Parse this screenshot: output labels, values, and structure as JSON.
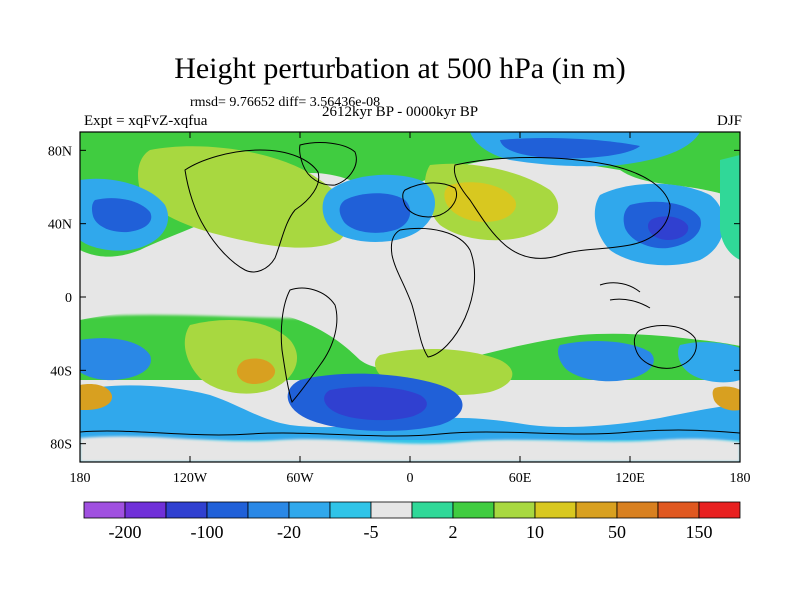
{
  "title": "Height perturbation at 500 hPa (in m)",
  "stats": "rmsd= 9.76652 diff= 3.56436e-08",
  "left_label": "Expt = xqFvZ-xqfua",
  "center_label": "2612kyr BP - 0000kyr BP",
  "right_label": "DJF",
  "map": {
    "projection": "equirectangular",
    "lon_range": [
      -180,
      180
    ],
    "lat_range": [
      -90,
      90
    ],
    "x_ticks": [
      {
        "lon": -180,
        "label": "180"
      },
      {
        "lon": -120,
        "label": "120W"
      },
      {
        "lon": -60,
        "label": "60W"
      },
      {
        "lon": 0,
        "label": "0"
      },
      {
        "lon": 60,
        "label": "60E"
      },
      {
        "lon": 120,
        "label": "120E"
      },
      {
        "lon": 180,
        "label": "180"
      }
    ],
    "y_ticks": [
      {
        "lat": 80,
        "label": "80N"
      },
      {
        "lat": 40,
        "label": "40N"
      },
      {
        "lat": 0,
        "label": "0"
      },
      {
        "lat": -40,
        "label": "40S"
      },
      {
        "lat": -80,
        "label": "80S"
      }
    ],
    "background_color": "#e6e6e6"
  },
  "colorbar": {
    "colors": [
      "#a050e0",
      "#7030d8",
      "#3040d0",
      "#2060d8",
      "#2a88e6",
      "#30a8ec",
      "#30c4e8",
      "#e6e6e6",
      "#30d898",
      "#40cc40",
      "#a8d840",
      "#d8c820",
      "#d8a020",
      "#d88020",
      "#e05820",
      "#e82020"
    ],
    "labels": [
      {
        "boundary": 1,
        "text": "-200"
      },
      {
        "boundary": 3,
        "text": "-100"
      },
      {
        "boundary": 5,
        "text": "-20"
      },
      {
        "boundary": 7,
        "text": "-5"
      },
      {
        "boundary": 9,
        "text": "2"
      },
      {
        "boundary": 11,
        "text": "10"
      },
      {
        "boundary": 13,
        "text": "50"
      },
      {
        "boundary": 15,
        "text": "150"
      }
    ]
  }
}
